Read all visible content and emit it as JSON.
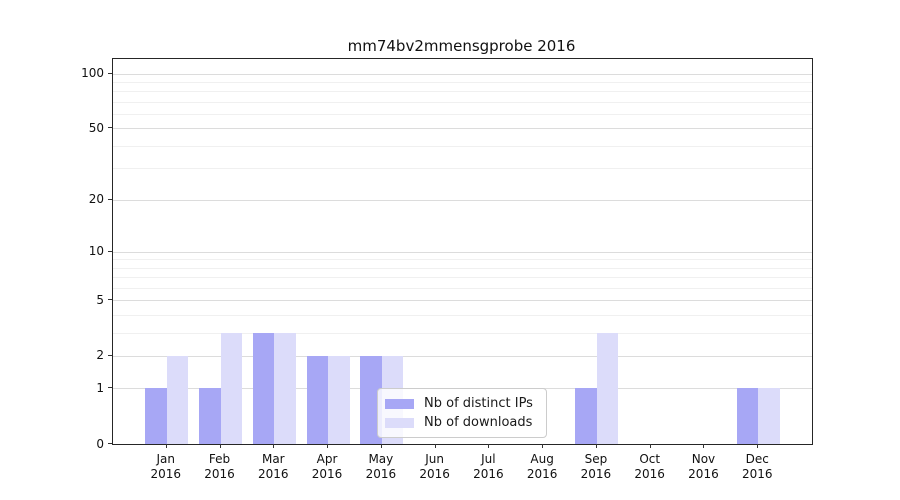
{
  "chart_data": {
    "type": "bar",
    "title": "mm74bv2mmensgprobe 2016",
    "categories": [
      "Jan 2016",
      "Feb 2016",
      "Mar 2016",
      "Apr 2016",
      "May 2016",
      "Jun 2016",
      "Jul 2016",
      "Aug 2016",
      "Sep 2016",
      "Oct 2016",
      "Nov 2016",
      "Dec 2016"
    ],
    "series": [
      {
        "name": "Nb of distinct IPs",
        "color": "#a7a7f5",
        "values": [
          1,
          1,
          3,
          2,
          2,
          0,
          0,
          0,
          1,
          0,
          0,
          1
        ]
      },
      {
        "name": "Nb of downloads",
        "color": "#dcdcfa",
        "values": [
          2,
          3,
          3,
          2,
          2,
          0,
          0,
          0,
          3,
          0,
          0,
          1
        ]
      }
    ],
    "yscale": "log1p",
    "ylim": [
      0,
      120
    ],
    "y_ticks": [
      0,
      1,
      2,
      5,
      10,
      20,
      50,
      100
    ],
    "y_minor_gridlines": [
      3,
      4,
      6,
      7,
      8,
      9,
      30,
      40,
      60,
      70,
      80,
      90
    ],
    "grid": true,
    "legend_location": "lower center (inside plot)",
    "colors": {
      "major_grid": "#dcdcdc",
      "minor_grid": "#f0f0f0",
      "spine": "#262626",
      "tick": "#333333",
      "text": "#111111"
    }
  }
}
